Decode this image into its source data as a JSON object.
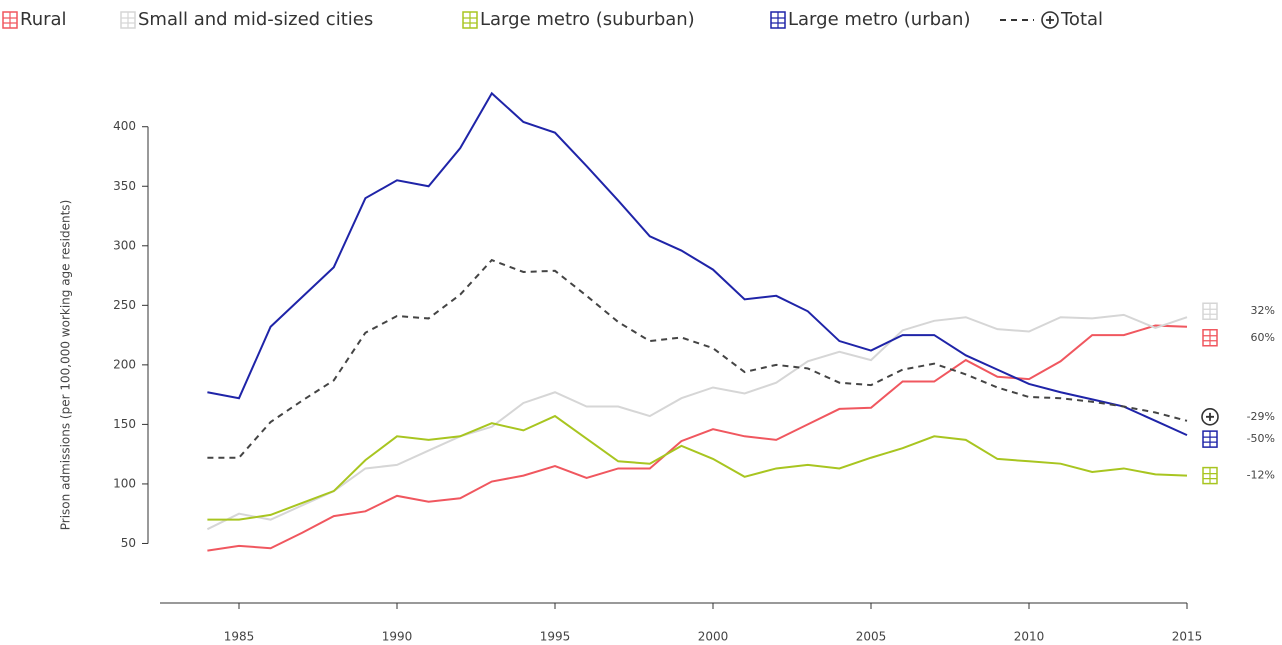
{
  "chart_data": {
    "type": "line",
    "y_label": "Prison admissions (per 100,000 working age residents)",
    "x": [
      1984,
      1985,
      1986,
      1987,
      1988,
      1989,
      1990,
      1991,
      1992,
      1993,
      1994,
      1995,
      1996,
      1997,
      1998,
      1999,
      2000,
      2001,
      2002,
      2003,
      2004,
      2005,
      2006,
      2007,
      2008,
      2009,
      2010,
      2011,
      2012,
      2013,
      2014,
      2015
    ],
    "xlim": [
      1982.5,
      2015
    ],
    "xticks": [
      1985,
      1990,
      1995,
      2000,
      2005,
      2010,
      2015
    ],
    "ylim": [
      0,
      430
    ],
    "yticks": [
      50,
      100,
      150,
      200,
      250,
      300,
      350,
      400
    ],
    "series": [
      {
        "name": "Rural",
        "color": "#f0575f",
        "dash": false,
        "end_label": "60%",
        "values": [
          44,
          48,
          46,
          59,
          73,
          77,
          90,
          85,
          88,
          102,
          107,
          115,
          105,
          113,
          113,
          136,
          146,
          140,
          137,
          150,
          163,
          164,
          186,
          186,
          204,
          190,
          188,
          203,
          225,
          225,
          233,
          232
        ]
      },
      {
        "name": "Small and mid-sized cities",
        "color": "#d6d6d6",
        "dash": false,
        "end_label": "32%",
        "values": [
          62,
          75,
          70,
          82,
          94,
          113,
          116,
          128,
          140,
          148,
          168,
          177,
          165,
          165,
          157,
          172,
          181,
          176,
          185,
          203,
          211,
          204,
          229,
          237,
          240,
          230,
          228,
          240,
          239,
          242,
          231,
          240
        ]
      },
      {
        "name": "Large metro (suburban)",
        "color": "#a8c520",
        "dash": false,
        "end_label": "-12%",
        "values": [
          70,
          70,
          74,
          84,
          94,
          120,
          140,
          137,
          140,
          151,
          145,
          157,
          138,
          119,
          117,
          132,
          121,
          106,
          113,
          116,
          113,
          122,
          130,
          140,
          137,
          121,
          119,
          117,
          110,
          113,
          108,
          107
        ]
      },
      {
        "name": "Large metro (urban)",
        "color": "#1f24a8",
        "dash": false,
        "end_label": "-50%",
        "values": [
          177,
          172,
          232,
          257,
          282,
          340,
          355,
          350,
          382,
          428,
          404,
          395,
          367,
          338,
          308,
          296,
          280,
          255,
          258,
          245,
          220,
          212,
          225,
          225,
          208,
          196,
          184,
          177,
          171,
          165,
          153,
          141
        ]
      },
      {
        "name": "Total",
        "color": "#444444",
        "dash": true,
        "end_label": "-29%",
        "values": [
          122,
          122,
          152,
          170,
          187,
          227,
          241,
          239,
          259,
          288,
          278,
          279,
          258,
          236,
          220,
          223,
          214,
          194,
          200,
          197,
          185,
          183,
          196,
          201,
          192,
          181,
          173,
          172,
          169,
          165,
          160,
          153
        ]
      }
    ]
  }
}
